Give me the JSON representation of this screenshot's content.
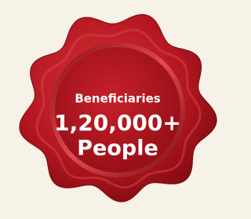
{
  "seal": {
    "line1": "Beneficiaries",
    "line2": "1,20,000+",
    "line3": "People"
  }
}
